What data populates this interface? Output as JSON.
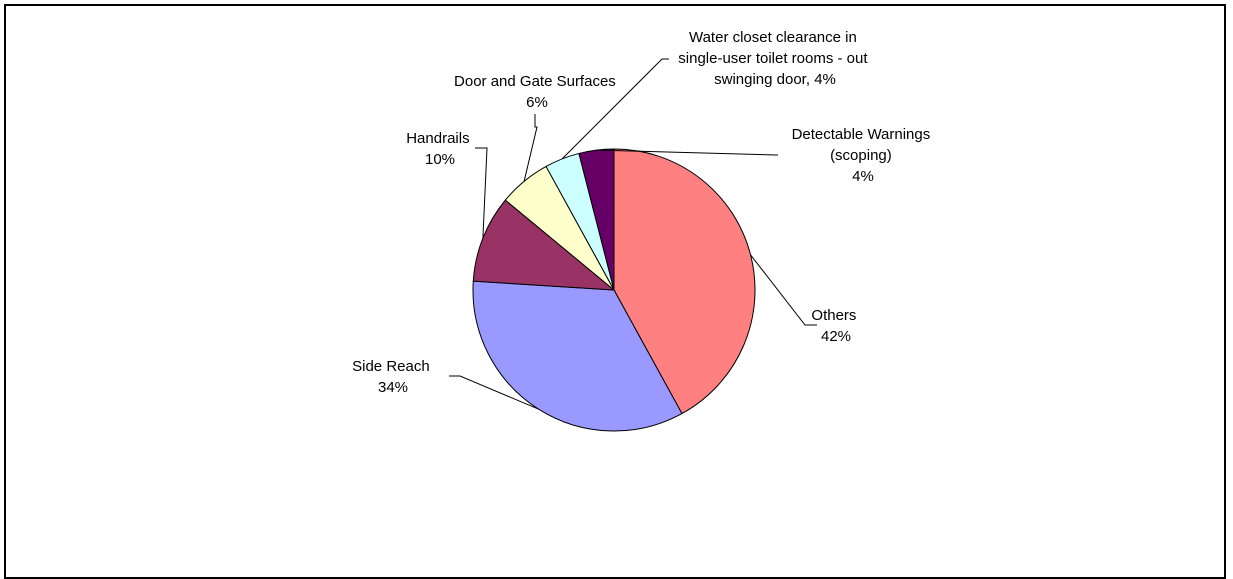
{
  "chart_data": {
    "type": "pie",
    "title": "",
    "slices": [
      {
        "label": "Others",
        "value_label": "42%",
        "value": 42,
        "color": "#FF8080"
      },
      {
        "label": "Side Reach",
        "value_label": "34%",
        "value": 34,
        "color": "#9999FF"
      },
      {
        "label": "Handrails",
        "value_label": "10%",
        "value": 10,
        "color": "#993366"
      },
      {
        "label": "Door and Gate Surfaces",
        "value_label": "6%",
        "value": 6,
        "color": "#FFFFCC"
      },
      {
        "label": "Water closet clearance in single-user toilet rooms - out swinging door, 4%",
        "value_label": "4%",
        "value": 4,
        "color": "#CCFFFF"
      },
      {
        "label": "Detectable Warnings (scoping)",
        "value_label": "4%",
        "value": 4,
        "color": "#660066"
      }
    ],
    "label_lines": {
      "others": [
        "Others",
        "42%"
      ],
      "side_reach": [
        "Side Reach",
        "34%"
      ],
      "handrails": [
        "Handrails",
        "10%"
      ],
      "door": [
        "Door and Gate Surfaces",
        "6%"
      ],
      "water": [
        "Water closet clearance in",
        "single-user toilet rooms - out",
        "swinging door, 4%"
      ],
      "detectable": [
        "Detectable Warnings",
        "(scoping)",
        "4%"
      ]
    }
  }
}
